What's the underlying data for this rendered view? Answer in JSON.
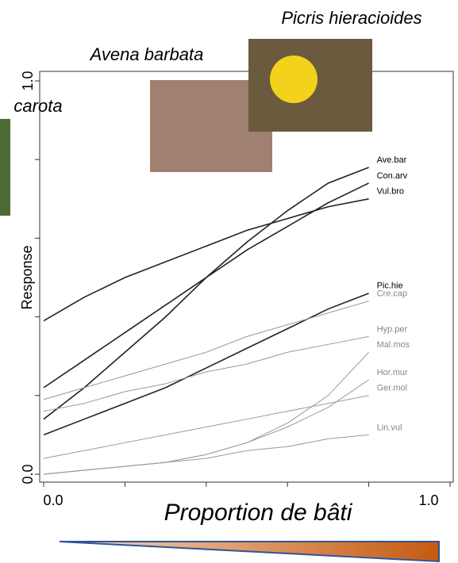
{
  "chart_data": {
    "type": "line",
    "x_label": "Proportion de bâti",
    "y_label": "Response",
    "annotations": [
      "Picris hieracioides",
      "Avena barbata",
      "carota"
    ],
    "x": [
      0,
      0.1,
      0.2,
      0.3,
      0.4,
      0.5,
      0.6,
      0.7,
      0.8
    ],
    "series": [
      {
        "name": "Ave.bar",
        "color": "#222222",
        "values": [
          0.14,
          0.22,
          0.31,
          0.4,
          0.5,
          0.59,
          0.67,
          0.74,
          0.78
        ]
      },
      {
        "name": "Con.arv",
        "color": "#222222",
        "values": [
          0.22,
          0.29,
          0.36,
          0.43,
          0.5,
          0.57,
          0.63,
          0.69,
          0.74
        ]
      },
      {
        "name": "Vul.bro",
        "color": "#222222",
        "values": [
          0.39,
          0.45,
          0.5,
          0.54,
          0.58,
          0.62,
          0.65,
          0.68,
          0.7
        ]
      },
      {
        "name": "Pic.hie",
        "color": "#222222",
        "values": [
          0.1,
          0.14,
          0.18,
          0.22,
          0.27,
          0.32,
          0.37,
          0.42,
          0.46
        ]
      },
      {
        "name": "Cre.cap",
        "color": "#999999",
        "values": [
          0.19,
          0.22,
          0.25,
          0.28,
          0.31,
          0.35,
          0.38,
          0.41,
          0.44
        ]
      },
      {
        "name": "Hyp.per",
        "color": "#999999",
        "values": [
          0.16,
          0.18,
          0.21,
          0.23,
          0.26,
          0.28,
          0.31,
          0.33,
          0.35
        ]
      },
      {
        "name": "Mal.mos",
        "color": "#999999",
        "values": [
          0.0,
          0.01,
          0.02,
          0.03,
          0.05,
          0.08,
          0.13,
          0.2,
          0.31
        ]
      },
      {
        "name": "Hor.mur",
        "color": "#999999",
        "values": [
          0.0,
          0.01,
          0.02,
          0.03,
          0.05,
          0.08,
          0.12,
          0.17,
          0.24
        ]
      },
      {
        "name": "Ger.mol",
        "color": "#999999",
        "values": [
          0.04,
          0.06,
          0.08,
          0.1,
          0.12,
          0.14,
          0.16,
          0.18,
          0.2
        ]
      },
      {
        "name": "Lin.vul",
        "color": "#999999",
        "values": [
          0.0,
          0.01,
          0.02,
          0.03,
          0.04,
          0.06,
          0.07,
          0.09,
          0.1
        ]
      }
    ],
    "xlim": [
      0,
      1
    ],
    "ylim": [
      0,
      1
    ],
    "xticks": [
      {
        "value": 0,
        "label": "0.0"
      },
      {
        "value": 1,
        "label": "1.0"
      }
    ],
    "yticks": [
      {
        "value": 0,
        "label": "0.0"
      },
      {
        "value": 1,
        "label": "1.0"
      }
    ],
    "xticks_minor": [
      0.2,
      0.4,
      0.6,
      0.8
    ],
    "yticks_minor": [
      0.2,
      0.4,
      0.6,
      0.8
    ]
  }
}
